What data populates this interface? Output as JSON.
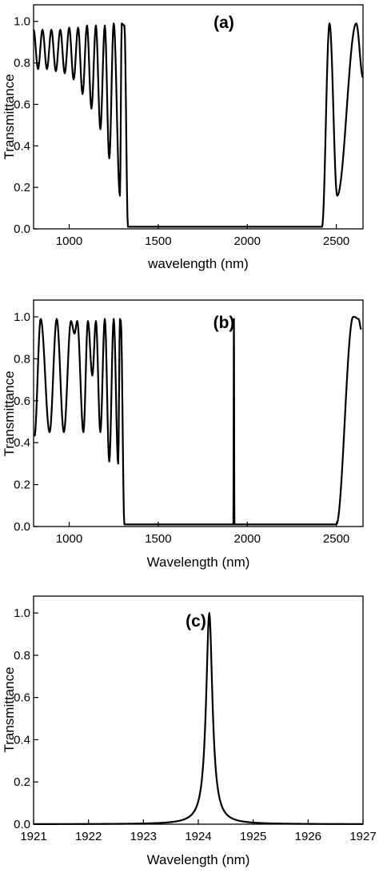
{
  "colors": {
    "line": "#000000",
    "axis": "#000000",
    "background": "#ffffff"
  },
  "chart_data": [
    {
      "type": "line",
      "panel_label": "(a)",
      "xlabel": "wavelength (nm)",
      "ylabel": "Transmittance",
      "xlim": [
        800,
        2650
      ],
      "ylim": [
        0,
        1.08
      ],
      "xticks": [
        1000,
        1500,
        2000,
        2500
      ],
      "yticks": [
        0.0,
        0.2,
        0.4,
        0.6,
        0.8,
        1.0
      ],
      "tick_labels_x": [
        "1000",
        "1500",
        "2000",
        "2500"
      ],
      "tick_labels_y": [
        "0.0",
        "0.2",
        "0.4",
        "0.6",
        "0.8",
        "1.0"
      ],
      "grid": false,
      "series": [
        {
          "oscillation_peaks": [
            [
              800,
              0.96
            ],
            [
              850,
              0.96
            ],
            [
              900,
              0.96
            ],
            [
              950,
              0.96
            ],
            [
              1000,
              0.97
            ],
            [
              1050,
              0.97
            ],
            [
              1100,
              0.98
            ],
            [
              1150,
              0.98
            ],
            [
              1200,
              0.98
            ],
            [
              1250,
              0.99
            ],
            [
              1295,
              0.99
            ],
            [
              1310,
              0.98
            ]
          ],
          "oscillation_minima": [
            [
              825,
              0.77
            ],
            [
              875,
              0.77
            ],
            [
              925,
              0.76
            ],
            [
              975,
              0.75
            ],
            [
              1025,
              0.72
            ],
            [
              1075,
              0.65
            ],
            [
              1125,
              0.58
            ],
            [
              1175,
              0.48
            ],
            [
              1225,
              0.34
            ],
            [
              1285,
              0.16
            ]
          ],
          "band_edges": [
            [
              1310,
              0.98
            ],
            [
              1330,
              0.01
            ],
            [
              2420,
              0.01
            ],
            [
              2462,
              0.99
            ]
          ],
          "tail_minima": [
            [
              2505,
              0.16
            ]
          ],
          "tail_peaks": [
            [
              2462,
              0.99
            ],
            [
              2612,
              0.99
            ]
          ],
          "end_point": [
            2650,
            0.73
          ]
        }
      ]
    },
    {
      "type": "line",
      "panel_label": "(b)",
      "xlabel": "Wavelength (nm)",
      "ylabel": "Transmittance",
      "xlim": [
        800,
        2650
      ],
      "ylim": [
        0,
        1.08
      ],
      "xticks": [
        1000,
        1500,
        2000,
        2500
      ],
      "yticks": [
        0.0,
        0.2,
        0.4,
        0.6,
        0.8,
        1.0
      ],
      "tick_labels_x": [
        "1000",
        "1500",
        "2000",
        "2500"
      ],
      "tick_labels_y": [
        "0.0",
        "0.2",
        "0.4",
        "0.6",
        "0.8",
        "1.0"
      ],
      "grid": false,
      "series": [
        {
          "oscillation_peaks": [
            [
              840,
              0.99
            ],
            [
              930,
              0.99
            ],
            [
              1010,
              0.98
            ],
            [
              1045,
              0.98
            ],
            [
              1105,
              0.98
            ],
            [
              1150,
              0.98
            ],
            [
              1200,
              0.99
            ],
            [
              1250,
              0.99
            ],
            [
              1285,
              0.99
            ]
          ],
          "oscillation_minima": [
            [
              805,
              0.43
            ],
            [
              890,
              0.45
            ],
            [
              970,
              0.45
            ],
            [
              1030,
              0.92
            ],
            [
              1080,
              0.45
            ],
            [
              1130,
              0.72
            ],
            [
              1175,
              0.45
            ],
            [
              1225,
              0.31
            ],
            [
              1275,
              0.3
            ]
          ],
          "band_edges": [
            [
              1290,
              0.98
            ],
            [
              1310,
              0.01
            ],
            [
              2500,
              0.01
            ],
            [
              2595,
              1.0
            ]
          ],
          "defect_mode": [
            1925,
            0.99
          ],
          "tail_points": [
            [
              2600,
              1.0
            ],
            [
              2625,
              0.99
            ],
            [
              2640,
              0.94
            ]
          ]
        }
      ]
    },
    {
      "type": "line",
      "panel_label": "(c)",
      "xlabel": "Wavelength (nm)",
      "ylabel": "Transmittance",
      "xlim": [
        1921,
        1927
      ],
      "ylim": [
        0,
        1.08
      ],
      "xticks": [
        1921,
        1922,
        1923,
        1924,
        1925,
        1926,
        1927
      ],
      "yticks": [
        0.0,
        0.2,
        0.4,
        0.6,
        0.8,
        1.0
      ],
      "tick_labels_x": [
        "1921",
        "1922",
        "1923",
        "1924",
        "1925",
        "1926",
        "1927"
      ],
      "tick_labels_y": [
        "0.0",
        "0.2",
        "0.4",
        "0.6",
        "0.8",
        "1.0"
      ],
      "grid": false,
      "series": [
        {
          "peak_center": 1924.2,
          "peak_value": 1.0,
          "half_width": 0.07
        }
      ]
    }
  ]
}
